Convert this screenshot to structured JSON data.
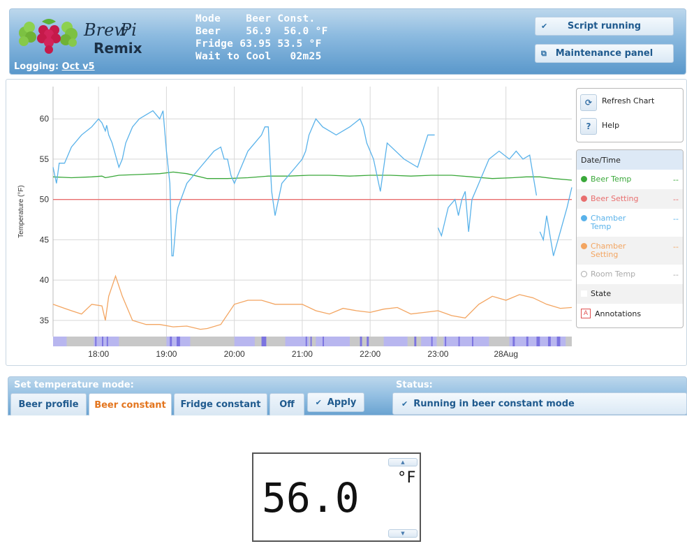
{
  "header": {
    "logging_label": "Logging:",
    "logging_name": "Oct v5",
    "lcd": [
      "Mode    Beer Const.",
      "Beer    56.9  56.0 °F",
      "Fridge 63.95 53.5 °F",
      "Wait to Cool   02m25"
    ],
    "script_button": "Script running",
    "maintenance_button": "Maintenance panel"
  },
  "chart_controls": {
    "refresh": "Refresh Chart",
    "help": "Help",
    "help_icon": "?"
  },
  "legend": {
    "header": "Date/Time",
    "items": [
      {
        "label": "Beer Temp",
        "value": "--",
        "color": "#3aa83a"
      },
      {
        "label": "Beer Setting",
        "value": "--",
        "color": "#e86e6e"
      },
      {
        "label": "Chamber Temp",
        "value": "--",
        "color": "#59b2ea"
      },
      {
        "label": "Chamber Setting",
        "value": "--",
        "color": "#f3a561"
      },
      {
        "label": "Room Temp",
        "value": "--",
        "color": "#aaaaaa"
      },
      {
        "label": "State",
        "value": "",
        "color": ""
      },
      {
        "label": "Annotations",
        "value": "",
        "color": "#e05050"
      }
    ]
  },
  "chart_data": {
    "type": "line",
    "ylabel": "Temperature (°F)",
    "ylim": [
      33,
      64
    ],
    "yticks": [
      35,
      40,
      45,
      50,
      55,
      60
    ],
    "xticks": [
      "18:00",
      "19:00",
      "20:00",
      "21:00",
      "22:00",
      "23:00",
      "28Aug"
    ],
    "xtick_hours": [
      18,
      19,
      20,
      21,
      22,
      23,
      24
    ],
    "xlim_hours": [
      17.33,
      24.97
    ],
    "grid": true,
    "series": [
      {
        "name": "Beer Setting",
        "color": "#e86e6e",
        "x": [
          17.33,
          24.97
        ],
        "y": [
          50,
          50
        ]
      },
      {
        "name": "Beer Temp",
        "color": "#3aa83a",
        "x": [
          17.33,
          17.6,
          17.9,
          18.05,
          18.1,
          18.3,
          18.6,
          18.9,
          19.1,
          19.3,
          19.6,
          19.9,
          20.2,
          20.5,
          20.8,
          21.1,
          21.4,
          21.7,
          22.0,
          22.3,
          22.6,
          22.9,
          23.2,
          23.5,
          23.8,
          24.1,
          24.3,
          24.5,
          24.7,
          24.97
        ],
        "y": [
          52.8,
          52.7,
          52.8,
          52.9,
          52.7,
          53.0,
          53.1,
          53.2,
          53.4,
          53.2,
          52.6,
          52.6,
          52.7,
          52.9,
          52.9,
          53.0,
          53.0,
          52.9,
          53.0,
          53.0,
          52.9,
          53.0,
          53.0,
          52.8,
          52.6,
          52.7,
          52.8,
          52.8,
          52.6,
          52.4
        ]
      },
      {
        "name": "Chamber Temp",
        "color": "#59b2ea",
        "x": [
          17.33,
          17.38,
          17.42,
          17.5,
          17.6,
          17.75,
          17.9,
          18.0,
          18.05,
          18.1,
          18.12,
          18.15,
          18.2,
          18.3,
          18.35,
          18.4,
          18.5,
          18.6,
          18.7,
          18.8,
          18.9,
          18.95,
          19.0,
          19.05,
          19.08,
          19.1,
          19.12,
          19.15,
          19.17,
          19.3,
          19.5,
          19.7,
          19.8,
          19.85,
          19.9,
          19.95,
          20.0,
          20.2,
          20.4,
          20.45,
          20.5,
          20.55,
          20.6,
          20.7,
          20.9,
          21.0,
          21.05,
          21.1,
          21.15,
          21.2,
          21.3,
          21.5,
          21.7,
          21.85,
          21.9,
          21.95,
          22.05,
          22.1,
          22.15,
          22.25,
          22.5,
          22.7,
          22.85,
          22.95
        ],
        "y": [
          54,
          52,
          54.5,
          54.5,
          56.5,
          58,
          59,
          60,
          59.5,
          58.5,
          59.2,
          58,
          57,
          54,
          55,
          57,
          59,
          60,
          60.5,
          61,
          60,
          61,
          56,
          52,
          43,
          43,
          45,
          48,
          49,
          52,
          54,
          56,
          56.5,
          55,
          55,
          53,
          52,
          56,
          58,
          59,
          59,
          51,
          48,
          52,
          54,
          55,
          56,
          58,
          59,
          60,
          59,
          58,
          59,
          60,
          59,
          57,
          55,
          53,
          51,
          57,
          55,
          54,
          58,
          58
        ]
      },
      {
        "name": "Chamber Setting",
        "color": "#f3a561",
        "x": [
          17.33,
          17.5,
          17.6,
          17.75,
          17.9,
          18.05,
          18.1,
          18.15,
          18.25,
          18.35,
          18.5,
          18.7,
          18.9,
          19.1,
          19.3,
          19.5,
          19.6,
          19.8,
          20.0,
          20.2,
          20.4,
          20.6,
          20.8,
          21.0,
          21.2,
          21.4,
          21.6,
          21.8,
          22.0,
          22.2,
          22.4,
          22.6,
          22.8,
          23.0,
          23.2,
          23.4,
          23.6,
          23.8,
          24.0,
          24.2,
          24.4,
          24.6,
          24.8,
          24.97
        ],
        "y": [
          37,
          36.5,
          36.2,
          35.8,
          37,
          36.8,
          35,
          38,
          40.5,
          38,
          35,
          34.5,
          34.5,
          34.2,
          34.3,
          33.9,
          34,
          34.5,
          37,
          37.5,
          37.5,
          37,
          37,
          37,
          36.2,
          35.8,
          36.5,
          36.2,
          36,
          36.4,
          36.6,
          35.8,
          36,
          36.2,
          35.6,
          35.3,
          37,
          38,
          37.5,
          38.2,
          37.8,
          37,
          36.5,
          36.6
        ]
      }
    ]
  },
  "mode_panel": {
    "heading": "Set temperature mode:",
    "status_heading": "Status:",
    "tabs": [
      "Beer profile",
      "Beer constant",
      "Fridge constant",
      "Off"
    ],
    "active_tab": "Beer constant",
    "apply_label": "Apply",
    "status_text": "Running in beer constant mode",
    "setpoint_value": "56.0",
    "setpoint_unit": "°F"
  }
}
